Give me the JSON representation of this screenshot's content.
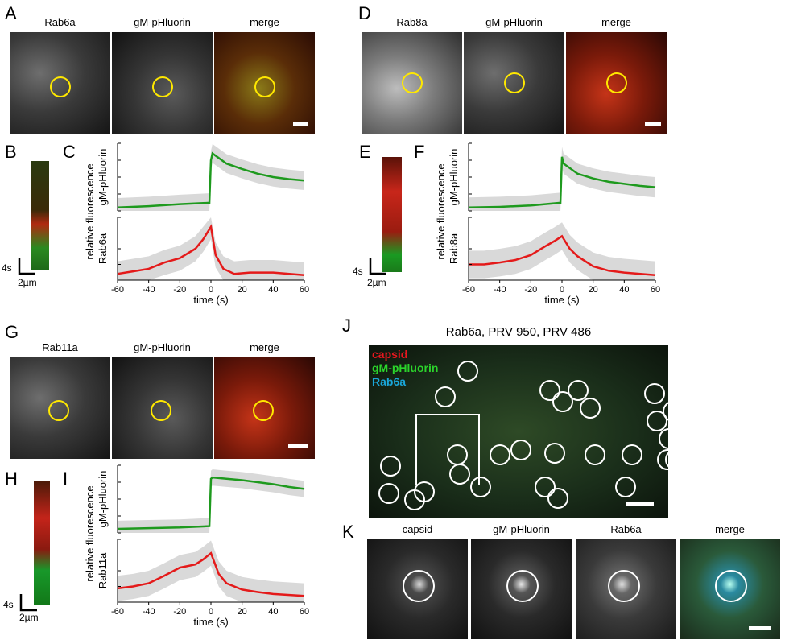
{
  "panels": {
    "A": "A",
    "B": "B",
    "C": "C",
    "D": "D",
    "E": "E",
    "F": "F",
    "G": "G",
    "H": "H",
    "I": "I",
    "J": "J",
    "K": "K"
  },
  "row1": {
    "left_titles": [
      "Rab6a",
      "gM-pHluorin",
      "merge"
    ],
    "right_titles": [
      "Rab8a",
      "gM-pHluorin",
      "merge"
    ]
  },
  "row3": {
    "titles": [
      "Rab11a",
      "gM-pHluorin",
      "merge"
    ]
  },
  "kymo_scale": {
    "time": "4s",
    "space": "2µm"
  },
  "plots": {
    "y_common": "relative fluorescence",
    "top_series": "gM-pHluorin",
    "xlabel": "time (s)",
    "xticks": [
      "-60",
      "-40",
      "-20",
      "0",
      "20",
      "40",
      "60"
    ],
    "C_bottom_series": "Rab6a",
    "F_bottom_series": "Rab8a",
    "I_bottom_series": "Rab11a"
  },
  "panel_J": {
    "title": "Rab6a, PRV 950, PRV 486",
    "legend": [
      {
        "label": "capsid",
        "color": "#e8171f"
      },
      {
        "label": "gM-pHluorin",
        "color": "#2bd42b"
      },
      {
        "label": "Rab6a",
        "color": "#1aa6d8"
      }
    ]
  },
  "panel_K": {
    "titles": [
      "capsid",
      "gM-pHluorin",
      "Rab6a",
      "merge"
    ]
  },
  "colors": {
    "green": "#1e9a1e",
    "red": "#e41a1a",
    "band": "#d9d9d9",
    "ring": "#ffe800"
  },
  "chart_data": [
    {
      "type": "line",
      "panel": "C",
      "ylabel": "gM-pHluorin",
      "x": [
        -60,
        -40,
        -20,
        -1,
        0,
        1,
        10,
        20,
        30,
        40,
        50,
        60
      ],
      "series": [
        {
          "name": "gM-pHluorin",
          "values": [
            0.05,
            0.07,
            0.1,
            0.12,
            0.75,
            0.85,
            0.7,
            0.62,
            0.55,
            0.5,
            0.47,
            0.45
          ],
          "band": 0.14
        }
      ],
      "xlim": [
        -60,
        60
      ],
      "grid": false
    },
    {
      "type": "line",
      "panel": "C",
      "ylabel": "Rab6a",
      "xlabel": "time (s)",
      "x": [
        -60,
        -50,
        -40,
        -30,
        -20,
        -10,
        -5,
        0,
        3,
        8,
        15,
        25,
        40,
        60
      ],
      "series": [
        {
          "name": "Rab6a",
          "values": [
            0.1,
            0.14,
            0.18,
            0.28,
            0.35,
            0.5,
            0.65,
            0.85,
            0.4,
            0.18,
            0.1,
            0.12,
            0.12,
            0.08
          ],
          "band": 0.2
        }
      ],
      "xlim": [
        -60,
        60
      ],
      "grid": false
    },
    {
      "type": "line",
      "panel": "F",
      "ylabel": "gM-pHluorin",
      "x": [
        -60,
        -40,
        -20,
        -1,
        0,
        1,
        10,
        20,
        30,
        40,
        50,
        60
      ],
      "series": [
        {
          "name": "gM-pHluorin",
          "values": [
            0.05,
            0.06,
            0.08,
            0.12,
            0.8,
            0.7,
            0.55,
            0.48,
            0.43,
            0.4,
            0.37,
            0.35
          ],
          "band": 0.15
        }
      ],
      "xlim": [
        -60,
        60
      ],
      "grid": false
    },
    {
      "type": "line",
      "panel": "F",
      "ylabel": "Rab8a",
      "xlabel": "time (s)",
      "x": [
        -60,
        -50,
        -40,
        -30,
        -20,
        -10,
        -5,
        0,
        5,
        10,
        20,
        30,
        40,
        60
      ],
      "series": [
        {
          "name": "Rab8a",
          "values": [
            0.25,
            0.25,
            0.28,
            0.32,
            0.4,
            0.55,
            0.62,
            0.7,
            0.5,
            0.38,
            0.22,
            0.15,
            0.12,
            0.08
          ],
          "band": 0.22
        }
      ],
      "xlim": [
        -60,
        60
      ],
      "grid": false
    },
    {
      "type": "line",
      "panel": "I",
      "ylabel": "gM-pHluorin",
      "x": [
        -60,
        -40,
        -20,
        -1,
        0,
        1,
        10,
        20,
        30,
        40,
        50,
        60
      ],
      "series": [
        {
          "name": "gM-pHluorin",
          "values": [
            0.06,
            0.07,
            0.08,
            0.1,
            0.8,
            0.82,
            0.8,
            0.78,
            0.75,
            0.72,
            0.68,
            0.65
          ],
          "band": 0.12
        }
      ],
      "xlim": [
        -60,
        60
      ],
      "grid": false
    },
    {
      "type": "line",
      "panel": "I",
      "ylabel": "Rab11a",
      "xlabel": "time (s)",
      "x": [
        -60,
        -50,
        -40,
        -30,
        -20,
        -10,
        -5,
        0,
        5,
        10,
        20,
        30,
        40,
        60
      ],
      "series": [
        {
          "name": "Rab11a",
          "values": [
            0.22,
            0.25,
            0.3,
            0.42,
            0.55,
            0.6,
            0.68,
            0.78,
            0.45,
            0.3,
            0.2,
            0.16,
            0.13,
            0.1
          ],
          "band": 0.2
        }
      ],
      "xlim": [
        -60,
        60
      ],
      "grid": false
    }
  ]
}
